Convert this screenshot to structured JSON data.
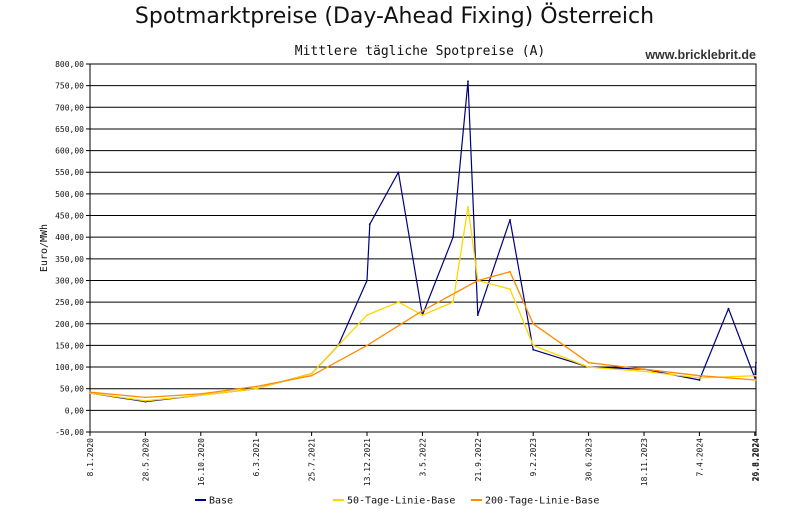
{
  "chart_data": {
    "type": "line",
    "title": "Spotmarktpreise (Day-Ahead Fixing) Österreich",
    "subtitle": "Mittlere tägliche Spotpreise (A)",
    "watermark": "www.bricklebrit.de",
    "ylabel": "Euro/MWh",
    "ylim": [
      -50,
      800
    ],
    "y_ticks": [
      -50,
      0,
      50,
      100,
      150,
      200,
      250,
      300,
      350,
      400,
      450,
      500,
      550,
      600,
      650,
      700,
      750,
      800
    ],
    "y_tick_labels": [
      "-50,00",
      "0,00",
      "50,00",
      "100,00",
      "150,00",
      "200,00",
      "250,00",
      "300,00",
      "350,00",
      "400,00",
      "450,00",
      "500,00",
      "550,00",
      "600,00",
      "650,00",
      "700,00",
      "750,00",
      "800,00"
    ],
    "x_ticks": [
      "8.1.2020",
      "28.5.2020",
      "16.10.2020",
      "6.3.2021",
      "25.7.2021",
      "13.12.2021",
      "3.5.2022",
      "21.9.2022",
      "9.2.2023",
      "30.6.2023",
      "18.11.2023",
      "7.4.2024",
      "26.8.2024",
      "29.8.2024"
    ],
    "grid": true,
    "legend_position": "bottom",
    "series": [
      {
        "name": "Base",
        "color": "#000080",
        "x": [
          "8.1.2020",
          "28.5.2020",
          "16.10.2020",
          "6.3.2021",
          "25.7.2021",
          "1.10.2021",
          "13.12.2021",
          "20.12.2021",
          "3.3.2022",
          "3.5.2022",
          "20.7.2022",
          "27.8.2022",
          "21.9.2022",
          "12.12.2022",
          "9.2.2023",
          "30.6.2023",
          "18.11.2023",
          "7.4.2024",
          "20.6.2024",
          "26.8.2024",
          "29.8.2024"
        ],
        "values": [
          40,
          20,
          35,
          50,
          85,
          150,
          300,
          430,
          550,
          220,
          400,
          760,
          220,
          440,
          140,
          100,
          95,
          70,
          235,
          75,
          110
        ]
      },
      {
        "name": "50-Tage-Linie-Base",
        "color": "#ffd700",
        "x": [
          "8.1.2020",
          "28.5.2020",
          "16.10.2020",
          "6.3.2021",
          "25.7.2021",
          "13.12.2021",
          "3.3.2022",
          "3.5.2022",
          "20.7.2022",
          "27.8.2022",
          "21.9.2022",
          "12.12.2022",
          "9.2.2023",
          "30.6.2023",
          "18.11.2023",
          "7.4.2024",
          "29.8.2024"
        ],
        "values": [
          40,
          22,
          35,
          50,
          85,
          220,
          250,
          220,
          250,
          470,
          300,
          280,
          150,
          100,
          90,
          75,
          80
        ]
      },
      {
        "name": "200-Tage-Linie-Base",
        "color": "#ff8c00",
        "x": [
          "8.1.2020",
          "28.5.2020",
          "16.10.2020",
          "6.3.2021",
          "25.7.2021",
          "13.12.2021",
          "3.5.2022",
          "21.9.2022",
          "12.12.2022",
          "9.2.2023",
          "30.6.2023",
          "18.11.2023",
          "7.4.2024",
          "29.8.2024"
        ],
        "values": [
          42,
          30,
          38,
          55,
          80,
          150,
          230,
          300,
          320,
          200,
          110,
          95,
          80,
          70
        ]
      }
    ]
  }
}
